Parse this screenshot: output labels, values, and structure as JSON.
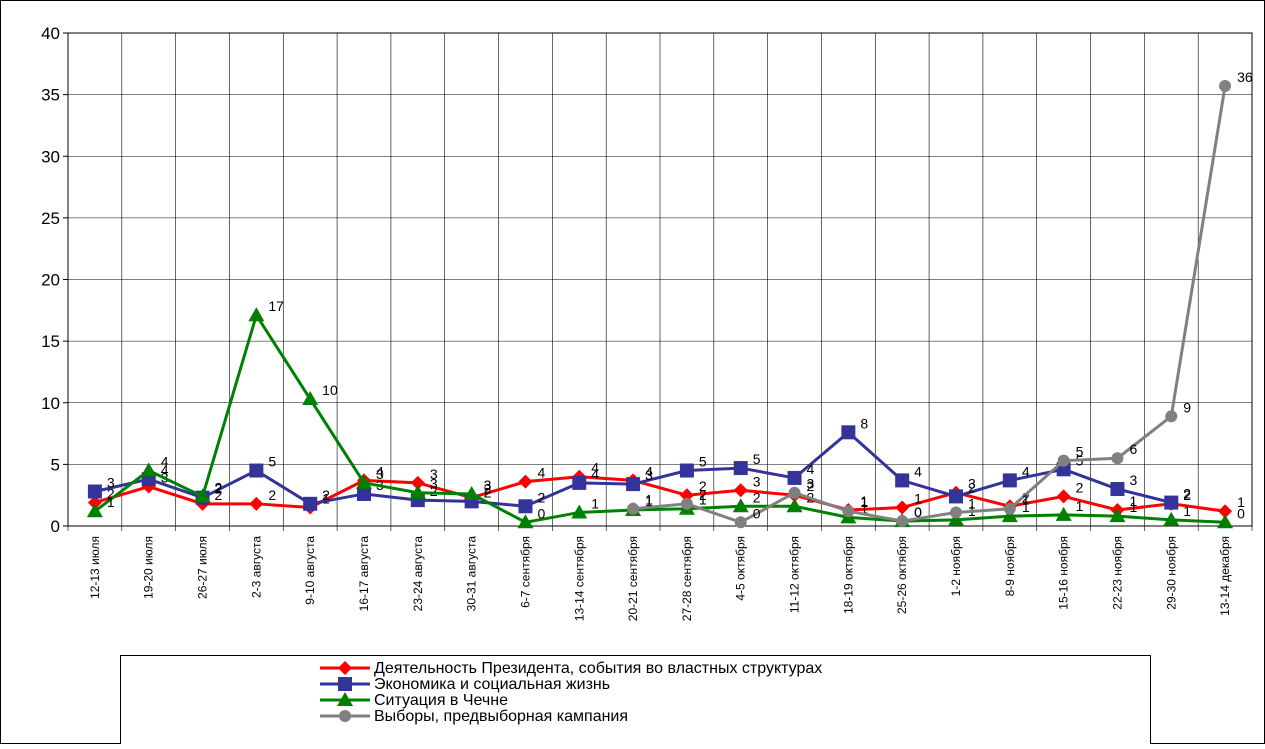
{
  "chart_data": {
    "type": "line",
    "categories": [
      "12-13 июля",
      "19-20 июля",
      "26-27 июля",
      "2-3 августа",
      "9-10 августа",
      "16-17 августа",
      "23-24 августа",
      "30-31 августа",
      "6-7 сентября",
      "13-14 сентября",
      "20-21 сентября",
      "27-28 сентября",
      "4-5 октября",
      "11-12 октября",
      "18-19 октября",
      "25-26 октября",
      "1-2 ноября",
      "8-9 ноября",
      "15-16 ноября",
      "22-23 ноября",
      "29-30 ноября",
      "13-14 декабря"
    ],
    "ylim": [
      0,
      40
    ],
    "yticks": [
      0,
      5,
      10,
      15,
      20,
      25,
      30,
      35,
      40
    ],
    "grid": true,
    "series": [
      {
        "name": "Деятельность Президента, события во властных структурах",
        "color": "#ff0000",
        "marker": "diamond",
        "values": [
          1.9,
          3.2,
          1.8,
          1.8,
          1.5,
          3.7,
          3.5,
          2.3,
          3.6,
          4.0,
          3.7,
          2.5,
          2.9,
          2.5,
          1.3,
          1.5,
          2.7,
          1.6,
          2.4,
          1.3,
          1.8,
          1.2
        ],
        "value_labels": [
          "2",
          "3",
          "2",
          "2",
          "1",
          "4",
          "3",
          "2",
          "4",
          "4",
          "4",
          "2",
          "3",
          "2",
          "1",
          "1",
          "3",
          "2",
          "2",
          "1",
          "2",
          "1"
        ]
      },
      {
        "name": "Экономика и социальная жизнь",
        "color": "#333399",
        "marker": "square",
        "values": [
          2.8,
          3.8,
          2.3,
          4.5,
          1.8,
          2.6,
          2.1,
          2.0,
          1.6,
          3.5,
          3.4,
          4.5,
          4.7,
          3.9,
          7.6,
          3.7,
          2.4,
          3.7,
          4.6,
          3.0,
          1.9,
          null
        ],
        "value_labels": [
          "3",
          "4",
          "2",
          "5",
          "2",
          "3",
          "2",
          "2",
          "2",
          "4",
          "3",
          "5",
          "5",
          "4",
          "8",
          "4",
          "2",
          "4",
          "5",
          "3",
          "2",
          null
        ]
      },
      {
        "name": "Ситуация в Чечне",
        "color": "#008000",
        "marker": "triangle",
        "values": [
          1.2,
          4.5,
          2.4,
          17.1,
          10.3,
          3.5,
          2.7,
          2.6,
          0.3,
          1.1,
          1.3,
          1.4,
          1.6,
          1.6,
          0.7,
          0.4,
          0.5,
          0.8,
          0.9,
          0.8,
          0.5,
          0.3
        ],
        "value_labels": [
          "1",
          "4",
          "2",
          "17",
          "10",
          "3",
          "3",
          "3",
          "0",
          "1",
          "1",
          "1",
          "2",
          "2",
          "1",
          "0",
          "1",
          "1",
          "1",
          "1",
          "1",
          "0"
        ]
      },
      {
        "name": "Выборы, предвыборная кампания",
        "color": "#808080",
        "marker": "circle",
        "values": [
          null,
          null,
          null,
          null,
          null,
          null,
          null,
          null,
          null,
          null,
          1.4,
          1.8,
          0.3,
          2.7,
          1.2,
          0.4,
          1.1,
          1.4,
          5.3,
          5.5,
          8.9,
          35.7
        ],
        "value_labels": [
          null,
          null,
          null,
          null,
          null,
          null,
          null,
          null,
          null,
          null,
          "1",
          "2",
          "0",
          "3",
          "1",
          "0",
          "1",
          "1",
          "5",
          "6",
          "9",
          "36"
        ]
      }
    ]
  }
}
